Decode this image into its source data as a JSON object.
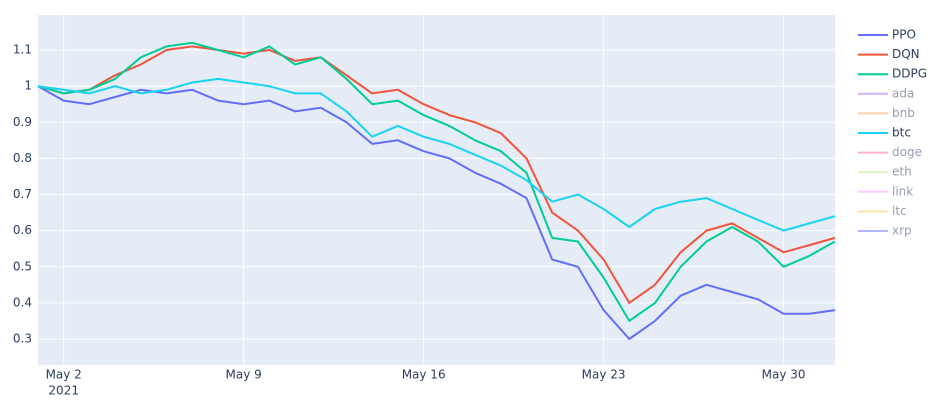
{
  "chart_data": {
    "type": "line",
    "x": [
      "2021-05-01",
      "2021-05-02",
      "2021-05-03",
      "2021-05-04",
      "2021-05-05",
      "2021-05-06",
      "2021-05-07",
      "2021-05-08",
      "2021-05-09",
      "2021-05-10",
      "2021-05-11",
      "2021-05-12",
      "2021-05-13",
      "2021-05-14",
      "2021-05-15",
      "2021-05-16",
      "2021-05-17",
      "2021-05-18",
      "2021-05-19",
      "2021-05-20",
      "2021-05-21",
      "2021-05-22",
      "2021-05-23",
      "2021-05-24",
      "2021-05-25",
      "2021-05-26",
      "2021-05-27",
      "2021-05-28",
      "2021-05-29",
      "2021-05-30",
      "2021-05-31",
      "2021-06-01"
    ],
    "series": [
      {
        "name": "PPO",
        "color": "#636efa",
        "values": [
          1.0,
          0.96,
          0.95,
          0.97,
          0.99,
          0.98,
          0.99,
          0.96,
          0.95,
          0.96,
          0.93,
          0.94,
          0.9,
          0.84,
          0.85,
          0.82,
          0.8,
          0.76,
          0.73,
          0.69,
          0.52,
          0.5,
          0.38,
          0.3,
          0.35,
          0.42,
          0.45,
          0.43,
          0.41,
          0.37,
          0.37,
          0.38
        ]
      },
      {
        "name": "DQN",
        "color": "#ef553b",
        "values": [
          1.0,
          0.98,
          0.99,
          1.03,
          1.06,
          1.1,
          1.11,
          1.1,
          1.09,
          1.1,
          1.07,
          1.08,
          1.03,
          0.98,
          0.99,
          0.95,
          0.92,
          0.9,
          0.87,
          0.8,
          0.65,
          0.6,
          0.52,
          0.4,
          0.45,
          0.54,
          0.6,
          0.62,
          0.58,
          0.54,
          0.56,
          0.58
        ]
      },
      {
        "name": "DDPG",
        "color": "#00cc96",
        "values": [
          1.0,
          0.98,
          0.99,
          1.02,
          1.08,
          1.11,
          1.12,
          1.1,
          1.08,
          1.11,
          1.06,
          1.08,
          1.02,
          0.95,
          0.96,
          0.92,
          0.89,
          0.85,
          0.82,
          0.76,
          0.58,
          0.57,
          0.47,
          0.35,
          0.4,
          0.5,
          0.57,
          0.61,
          0.57,
          0.5,
          0.53,
          0.57
        ]
      },
      {
        "name": "ada",
        "color": "#ab63fa",
        "visible": false
      },
      {
        "name": "bnb",
        "color": "#ffa15a",
        "visible": false
      },
      {
        "name": "btc",
        "color": "#19d3f3",
        "values": [
          1.0,
          0.99,
          0.98,
          1.0,
          0.98,
          0.99,
          1.01,
          1.02,
          1.01,
          1.0,
          0.98,
          0.98,
          0.93,
          0.86,
          0.89,
          0.86,
          0.84,
          0.81,
          0.78,
          0.74,
          0.68,
          0.7,
          0.66,
          0.61,
          0.66,
          0.68,
          0.69,
          0.66,
          0.63,
          0.6,
          0.62,
          0.64
        ]
      },
      {
        "name": "doge",
        "color": "#ff6692",
        "visible": false
      },
      {
        "name": "eth",
        "color": "#b6e880",
        "visible": false
      },
      {
        "name": "link",
        "color": "#ff97ff",
        "visible": false
      },
      {
        "name": "ltc",
        "color": "#fecb52",
        "visible": false
      },
      {
        "name": "xrp",
        "color": "#636efa",
        "visible": false
      }
    ],
    "xlim": [
      "2021-05-01",
      "2021-06-01"
    ],
    "xticks": [
      {
        "value": "2021-05-02",
        "label": "May 2"
      },
      {
        "value": "2021-05-09",
        "label": "May 9"
      },
      {
        "value": "2021-05-16",
        "label": "May 16"
      },
      {
        "value": "2021-05-23",
        "label": "May 23"
      },
      {
        "value": "2021-05-30",
        "label": "May 30"
      }
    ],
    "xtick_year": "2021",
    "ylim": [
      0.228,
      1.197
    ],
    "yticks": [
      0.3,
      0.4,
      0.5,
      0.6,
      0.7,
      0.8,
      0.9,
      1,
      1.1
    ],
    "grid": true,
    "legend": "right"
  }
}
